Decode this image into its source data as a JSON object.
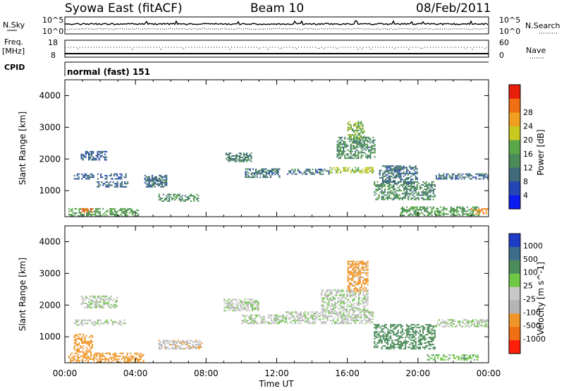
{
  "header": {
    "station": "Syowa East (fitACF)",
    "beam": "Beam 10",
    "date": "08/Feb/2011"
  },
  "status_panels": {
    "nsky_label": "N.Sky",
    "nsky_ticks": [
      "10^5",
      "10^0"
    ],
    "nsearch_label": "N.Search",
    "nsearch_ticks": [
      "10^5",
      "10^0"
    ],
    "freq_label_line1": "Freq.",
    "freq_label_line2": "[MHz]",
    "freq_ticks": [
      "18",
      "8"
    ],
    "nave_label": "Nave",
    "nave_ticks": [
      "60",
      "0"
    ],
    "cpid_label": "CPID",
    "cpid_value": "normal (fast) 151"
  },
  "colors": {
    "power_scale": [
      "#0b1cf0",
      "#2346b4",
      "#3e6a7a",
      "#4b8b58",
      "#5aa84a",
      "#c8c81e",
      "#f0a020",
      "#f06e14",
      "#e61e0a"
    ],
    "velocity_scale": [
      "#1f3cc8",
      "#3c6e8c",
      "#4b8c5a",
      "#6ec846",
      "#c8c8c8",
      "#b4b4b4",
      "#f09628",
      "#f06e14",
      "#ff1e0a"
    ]
  },
  "chart_data": [
    {
      "type": "heatmap",
      "title": "",
      "xlabel": "",
      "ylabel": "Slant Range [km]",
      "xlim": [
        "00:00",
        "24:00"
      ],
      "ylim": [
        180,
        4500
      ],
      "x_ticks": [
        "00:00",
        "04:00",
        "08:00",
        "12:00",
        "16:00",
        "20:00",
        "00:00"
      ],
      "y_ticks": [
        1000,
        2000,
        3000,
        4000
      ],
      "colorbar": {
        "label": "Power [dB]",
        "ticks": [
          "4",
          "8",
          "12",
          "16",
          "20",
          "24",
          "28"
        ]
      },
      "patches": [
        {
          "t0": 0.2,
          "t1": 4.2,
          "r0": 180,
          "r1": 450,
          "value": 14
        },
        {
          "t0": 0.9,
          "t1": 1.6,
          "r0": 300,
          "r1": 450,
          "value": 26
        },
        {
          "t0": 0.9,
          "t1": 2.4,
          "r0": 1950,
          "r1": 2250,
          "value": 7
        },
        {
          "t0": 0.5,
          "t1": 3.5,
          "r0": 1350,
          "r1": 1550,
          "value": 7
        },
        {
          "t0": 1.8,
          "t1": 3.6,
          "r0": 1100,
          "r1": 1300,
          "value": 8
        },
        {
          "t0": 4.5,
          "t1": 5.8,
          "r0": 1100,
          "r1": 1500,
          "value": 9
        },
        {
          "t0": 5.3,
          "t1": 7.6,
          "r0": 650,
          "r1": 900,
          "value": 12
        },
        {
          "t0": 9.1,
          "t1": 10.6,
          "r0": 1900,
          "r1": 2200,
          "value": 10
        },
        {
          "t0": 10.2,
          "t1": 12.2,
          "r0": 1400,
          "r1": 1700,
          "value": 9
        },
        {
          "t0": 12.5,
          "t1": 15.0,
          "r0": 1500,
          "r1": 1700,
          "value": 9
        },
        {
          "t0": 15.0,
          "t1": 17.5,
          "r0": 1550,
          "r1": 1750,
          "value": 18
        },
        {
          "t0": 15.4,
          "t1": 17.6,
          "r0": 2000,
          "r1": 2700,
          "value": 12
        },
        {
          "t0": 16.0,
          "t1": 17.0,
          "r0": 2600,
          "r1": 3200,
          "value": 16
        },
        {
          "t0": 17.5,
          "t1": 21.0,
          "r0": 700,
          "r1": 1300,
          "value": 12
        },
        {
          "t0": 17.8,
          "t1": 20.0,
          "r0": 1200,
          "r1": 1800,
          "value": 9
        },
        {
          "t0": 19.0,
          "t1": 23.5,
          "r0": 200,
          "r1": 500,
          "value": 14
        },
        {
          "t0": 21.0,
          "t1": 24.0,
          "r0": 1350,
          "r1": 1550,
          "value": 8
        },
        {
          "t0": 23.0,
          "t1": 24.0,
          "r0": 250,
          "r1": 450,
          "value": 24
        }
      ]
    },
    {
      "type": "heatmap",
      "title": "",
      "xlabel": "Time UT",
      "ylabel": "Slant Range [km]",
      "xlim": [
        "00:00",
        "24:00"
      ],
      "ylim": [
        180,
        4500
      ],
      "x_ticks": [
        "00:00",
        "04:00",
        "08:00",
        "12:00",
        "16:00",
        "20:00",
        "00:00"
      ],
      "y_ticks": [
        1000,
        2000,
        3000,
        4000
      ],
      "colorbar": {
        "label": "Velocity [m s^-1]",
        "ticks": [
          "1000",
          "500",
          "100",
          "25",
          "-25",
          "-100",
          "-500",
          "-1000"
        ]
      },
      "patches": [
        {
          "t0": 0.2,
          "t1": 4.5,
          "r0": 180,
          "r1": 500,
          "value": -300
        },
        {
          "t0": 0.5,
          "t1": 1.6,
          "r0": 500,
          "r1": 1100,
          "value": -200
        },
        {
          "t0": 0.9,
          "t1": 3.0,
          "r0": 1900,
          "r1": 2300,
          "value": 0
        },
        {
          "t0": 0.5,
          "t1": 3.5,
          "r0": 1350,
          "r1": 1550,
          "value": 0
        },
        {
          "t0": 5.3,
          "t1": 7.8,
          "r0": 600,
          "r1": 900,
          "value": -60
        },
        {
          "t0": 9.0,
          "t1": 11.0,
          "r0": 1800,
          "r1": 2200,
          "value": 0
        },
        {
          "t0": 10.0,
          "t1": 12.5,
          "r0": 1400,
          "r1": 1700,
          "value": 0
        },
        {
          "t0": 12.5,
          "t1": 17.5,
          "r0": 1400,
          "r1": 1800,
          "value": 0
        },
        {
          "t0": 14.5,
          "t1": 17.2,
          "r0": 1800,
          "r1": 2500,
          "value": 0
        },
        {
          "t0": 16.0,
          "t1": 17.2,
          "r0": 2400,
          "r1": 3400,
          "value": -150
        },
        {
          "t0": 17.5,
          "t1": 21.0,
          "r0": 600,
          "r1": 1400,
          "value": 300
        },
        {
          "t0": 20.5,
          "t1": 23.5,
          "r0": 250,
          "r1": 450,
          "value": 80
        },
        {
          "t0": 21.0,
          "t1": 24.0,
          "r0": 1300,
          "r1": 1550,
          "value": 0
        }
      ]
    }
  ]
}
